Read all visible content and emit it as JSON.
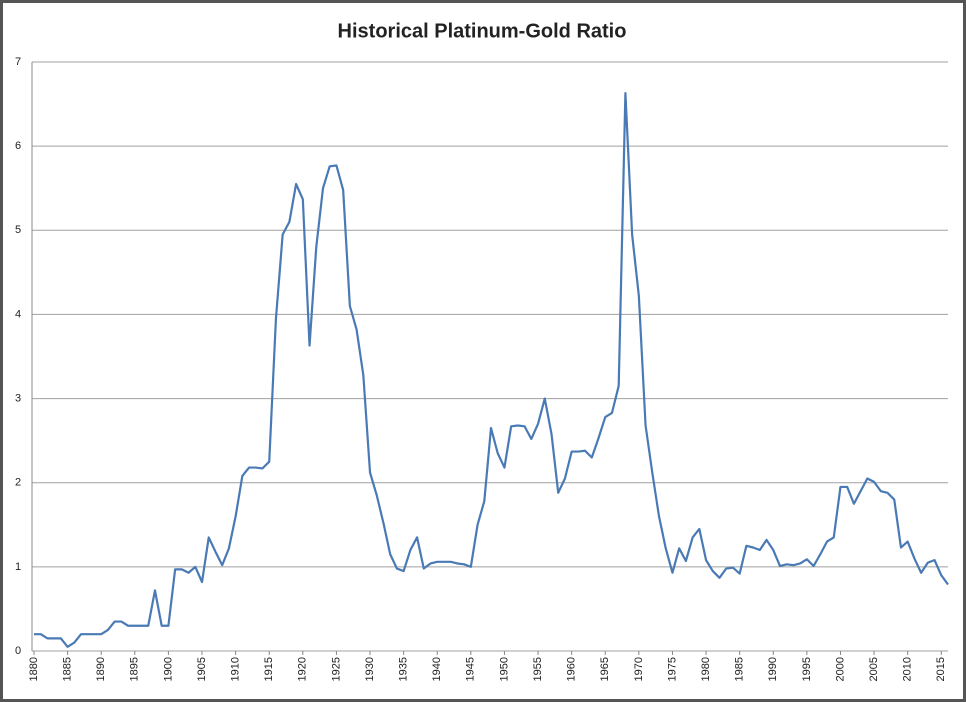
{
  "chart_data": {
    "type": "line",
    "title": "Historical Platinum-Gold Ratio",
    "x": [
      1880,
      1881,
      1882,
      1883,
      1884,
      1885,
      1886,
      1887,
      1888,
      1889,
      1890,
      1891,
      1892,
      1893,
      1894,
      1895,
      1896,
      1897,
      1898,
      1899,
      1900,
      1901,
      1902,
      1903,
      1904,
      1905,
      1906,
      1907,
      1908,
      1909,
      1910,
      1911,
      1912,
      1913,
      1914,
      1915,
      1916,
      1917,
      1918,
      1919,
      1920,
      1921,
      1922,
      1923,
      1924,
      1925,
      1926,
      1927,
      1928,
      1929,
      1930,
      1931,
      1932,
      1933,
      1934,
      1935,
      1936,
      1937,
      1938,
      1939,
      1940,
      1941,
      1942,
      1943,
      1944,
      1945,
      1946,
      1947,
      1948,
      1949,
      1950,
      1951,
      1952,
      1953,
      1954,
      1955,
      1956,
      1957,
      1958,
      1959,
      1960,
      1961,
      1962,
      1963,
      1964,
      1965,
      1966,
      1967,
      1968,
      1969,
      1970,
      1971,
      1972,
      1973,
      1974,
      1975,
      1976,
      1977,
      1978,
      1979,
      1980,
      1981,
      1982,
      1983,
      1984,
      1985,
      1986,
      1987,
      1988,
      1989,
      1990,
      1991,
      1992,
      1993,
      1994,
      1995,
      1996,
      1997,
      1998,
      1999,
      2000,
      2001,
      2002,
      2003,
      2004,
      2005,
      2006,
      2007,
      2008,
      2009,
      2010,
      2011,
      2012,
      2013,
      2014,
      2015,
      2016
    ],
    "values": [
      0.2,
      0.2,
      0.15,
      0.15,
      0.15,
      0.05,
      0.1,
      0.2,
      0.2,
      0.2,
      0.2,
      0.25,
      0.35,
      0.35,
      0.3,
      0.3,
      0.3,
      0.3,
      0.72,
      0.3,
      0.3,
      0.97,
      0.97,
      0.93,
      1.0,
      0.82,
      1.35,
      1.18,
      1.02,
      1.22,
      1.6,
      2.08,
      2.18,
      2.18,
      2.17,
      2.25,
      3.95,
      4.95,
      5.1,
      5.55,
      5.37,
      3.63,
      4.8,
      5.5,
      5.76,
      5.77,
      5.48,
      4.1,
      3.82,
      3.28,
      2.12,
      1.85,
      1.52,
      1.15,
      0.98,
      0.95,
      1.2,
      1.35,
      0.98,
      1.04,
      1.06,
      1.06,
      1.06,
      1.04,
      1.03,
      1.0,
      1.5,
      1.78,
      2.65,
      2.35,
      2.18,
      2.67,
      2.68,
      2.67,
      2.52,
      2.7,
      3.0,
      2.58,
      1.88,
      2.05,
      2.37,
      2.37,
      2.38,
      2.3,
      2.53,
      2.78,
      2.83,
      3.15,
      6.63,
      4.95,
      4.22,
      2.68,
      2.12,
      1.6,
      1.22,
      0.93,
      1.22,
      1.07,
      1.35,
      1.45,
      1.08,
      0.95,
      0.87,
      0.98,
      0.99,
      0.92,
      1.25,
      1.23,
      1.2,
      1.32,
      1.2,
      1.01,
      1.03,
      1.02,
      1.04,
      1.09,
      1.01,
      1.15,
      1.3,
      1.35,
      1.95,
      1.95,
      1.75,
      1.9,
      2.05,
      2.01,
      1.9,
      1.88,
      1.8,
      1.23,
      1.3,
      1.1,
      0.93,
      1.05,
      1.08,
      0.9,
      0.79
    ],
    "color": "#4a7ab5",
    "xlim": [
      1880,
      2016
    ],
    "xticks": [
      1880,
      1885,
      1890,
      1895,
      1900,
      1905,
      1910,
      1915,
      1920,
      1925,
      1930,
      1935,
      1940,
      1945,
      1950,
      1955,
      1960,
      1965,
      1970,
      1975,
      1980,
      1985,
      1990,
      1995,
      2000,
      2005,
      2010,
      2015
    ],
    "ylim": [
      0,
      7
    ],
    "yticks": [
      0,
      1,
      2,
      3,
      4,
      5,
      6,
      7
    ],
    "grid": true
  }
}
